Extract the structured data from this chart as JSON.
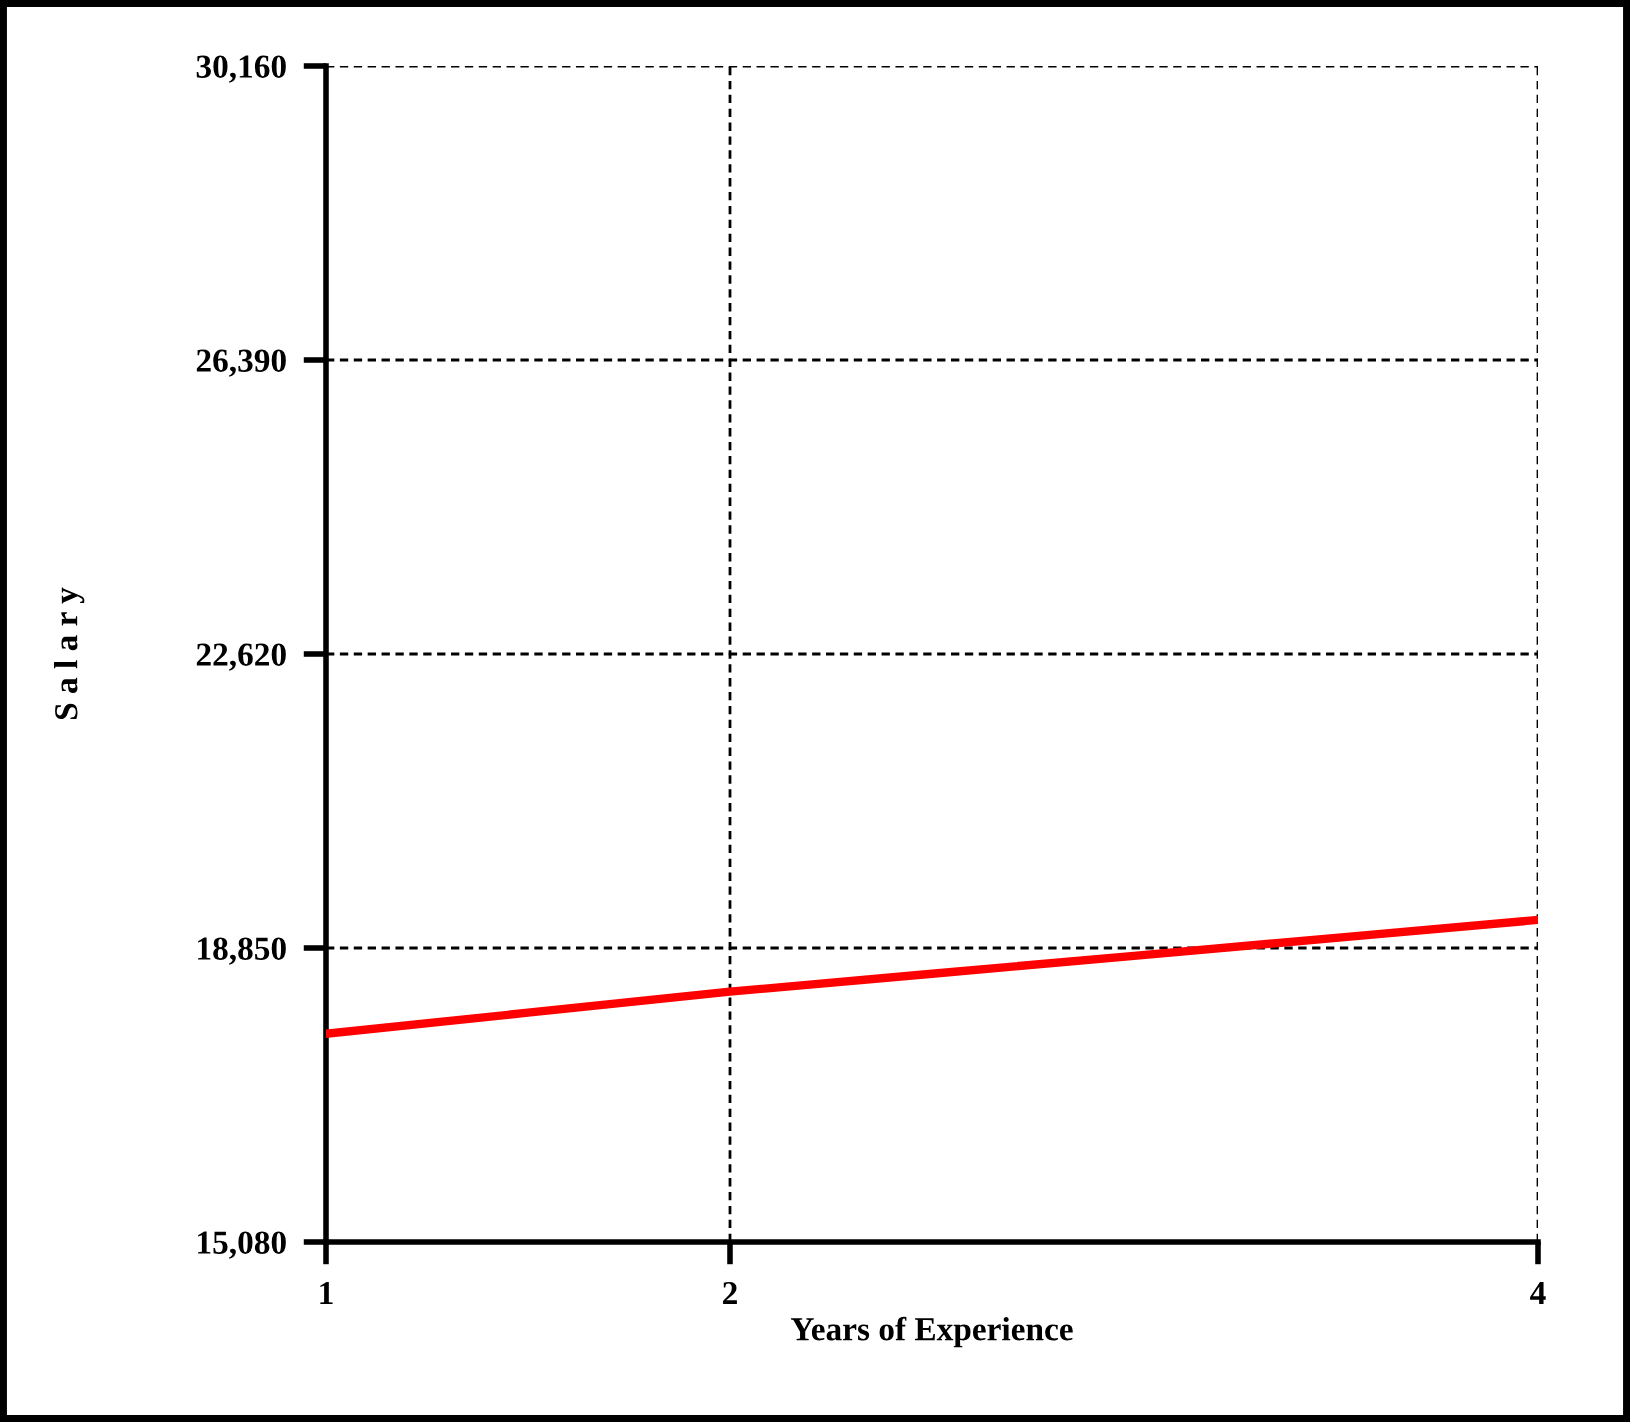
{
  "chart_data": {
    "type": "line",
    "xlabel": "Years of Experience",
    "ylabel": "S a l a r y",
    "x": [
      1,
      1.5,
      2,
      2.5,
      3,
      3.5,
      4
    ],
    "series": [
      {
        "color": "#ff0000",
        "values": [
          17750,
          18020,
          18290,
          18520,
          18750,
          18980,
          19210
        ]
      }
    ],
    "xlim": [
      1,
      4
    ],
    "xticks": [
      1,
      2,
      4
    ],
    "ylim": [
      15080,
      30160
    ],
    "yticks": [
      {
        "value": 15080,
        "label": "15,080"
      },
      {
        "value": 18850,
        "label": "18,850"
      },
      {
        "value": 22620,
        "label": "22,620"
      },
      {
        "value": 26390,
        "label": "26,390"
      },
      {
        "value": 30160,
        "label": "30,160"
      }
    ],
    "grid": true,
    "line_style": "solid",
    "marker": "none"
  }
}
